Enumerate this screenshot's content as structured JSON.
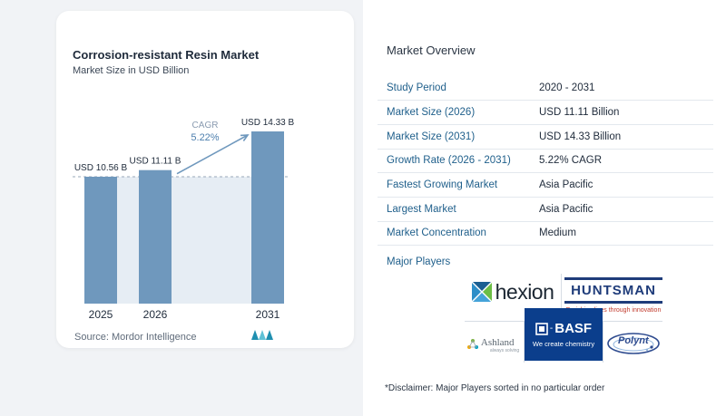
{
  "chart_data": {
    "type": "bar",
    "title": "Corrosion-resistant Resin Market",
    "subtitle": "Market Size in USD Billion",
    "categories": [
      "2025",
      "2026",
      "2031"
    ],
    "values": [
      10.56,
      11.11,
      14.33
    ],
    "value_labels": [
      "USD 10.56 B",
      "USD 11.11 B",
      "USD 14.33 B"
    ],
    "cagr_label": "CAGR",
    "cagr_value": "5.22%",
    "colors": {
      "bar": "#6f98bd",
      "band": "#e6edf4",
      "arrow": "#6f98bd",
      "cagr_text": "#8a9bb0",
      "cagr_value": "#4d7fae"
    }
  },
  "source": "Source: Mordor Intelligence",
  "overview": {
    "title": "Market Overview",
    "rows": [
      {
        "key": "Study Period",
        "value": "2020 - 2031"
      },
      {
        "key": "Market Size (2026)",
        "value": "USD 11.11 Billion"
      },
      {
        "key": "Market Size (2031)",
        "value": "USD 14.33 Billion"
      },
      {
        "key": "Growth Rate (2026 - 2031)",
        "value": "5.22% CAGR"
      },
      {
        "key": "Fastest Growing Market",
        "value": "Asia Pacific"
      },
      {
        "key": "Largest Market",
        "value": "Asia Pacific"
      },
      {
        "key": "Market Concentration",
        "value": "Medium"
      }
    ]
  },
  "players": {
    "label": "Major Players",
    "logos": {
      "hexion": "hexion",
      "huntsman": "HUNTSMAN",
      "huntsman_tagline": "Enriching lives through innovation",
      "basf": "BASF",
      "basf_tagline": "We create chemistry",
      "ashland": "Ashland",
      "ashland_tagline": "always solving",
      "polynt": "Polynt"
    }
  },
  "disclaimer": "*Disclaimer: Major Players sorted in no particular order"
}
